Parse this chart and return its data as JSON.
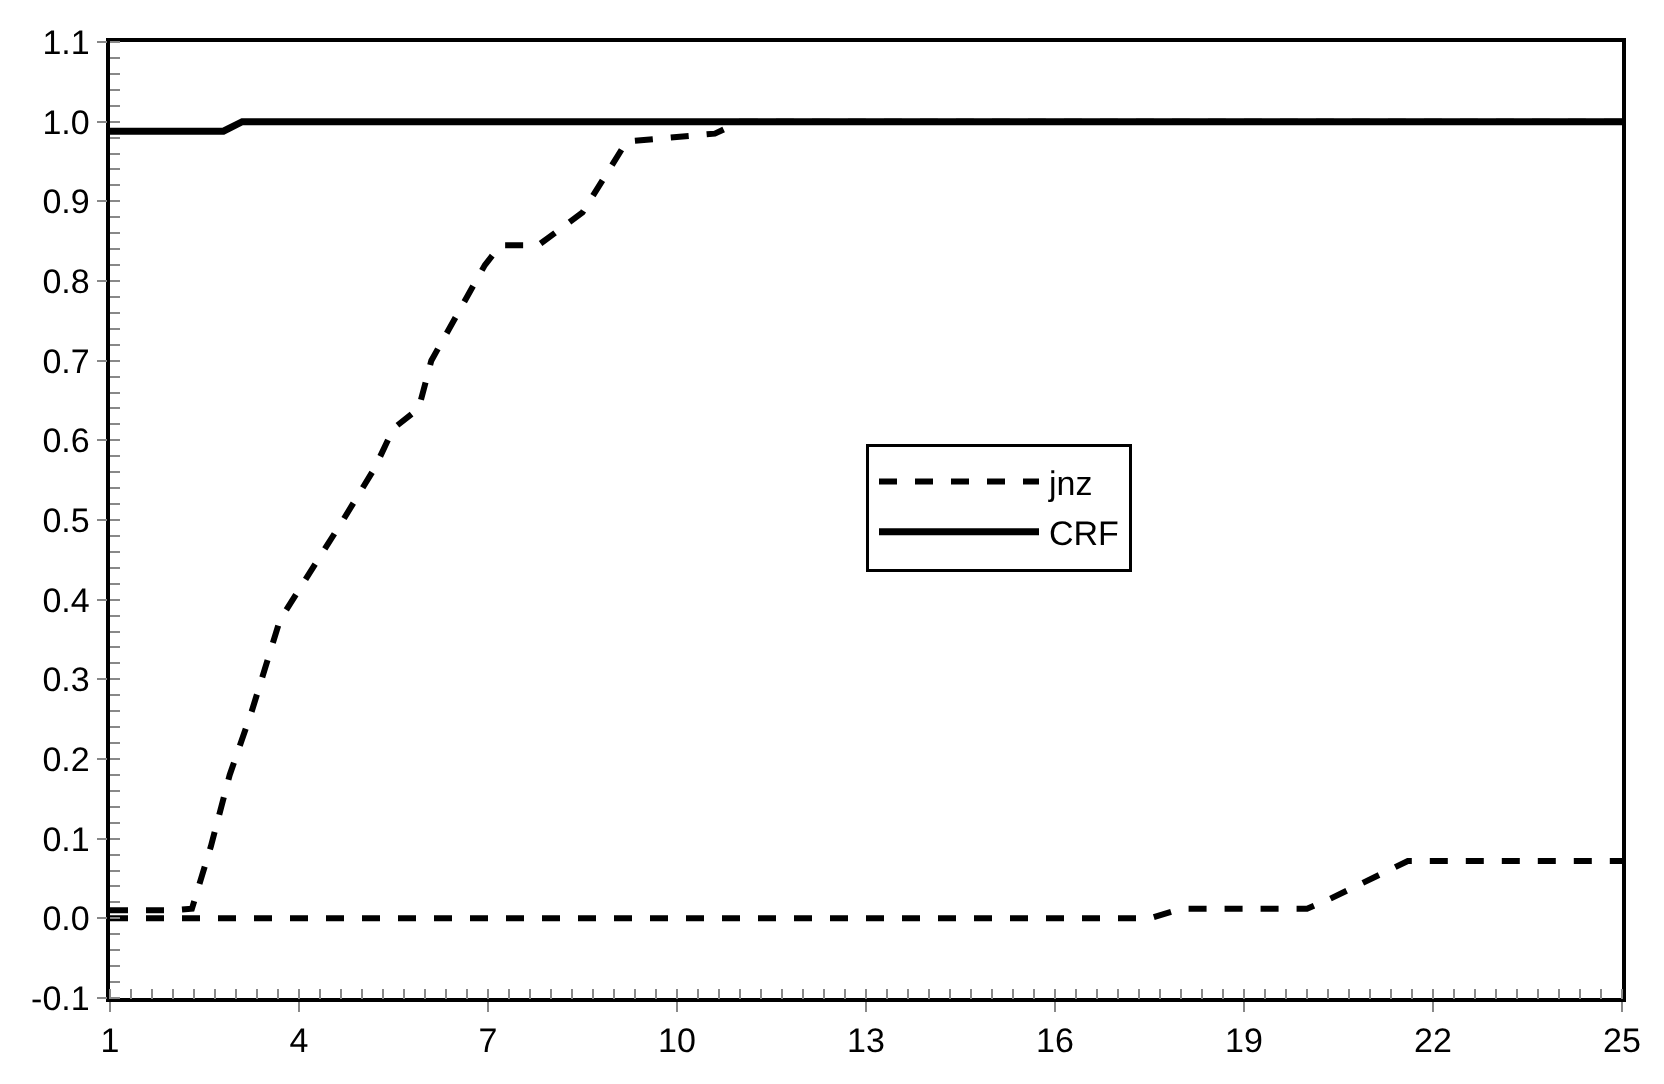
{
  "chart_data": {
    "type": "line",
    "xlim": [
      1,
      25
    ],
    "xticks": [
      1,
      4,
      7,
      10,
      13,
      16,
      19,
      22,
      25
    ],
    "ylim": [
      -0.1,
      1.1
    ],
    "yticks": [
      -0.1,
      {
        "value": 0,
        "label": "0.0"
      },
      0.1,
      0.2,
      0.3,
      0.4,
      0.5,
      0.6,
      0.7,
      0.8,
      0.9,
      {
        "value": 1,
        "label": "1.0"
      },
      1.1
    ],
    "grid": false,
    "legend": "right",
    "marker": "none",
    "series": [
      {
        "name": "jnz",
        "color": "#000000",
        "line_style": "dashed",
        "x": [
          1,
          2,
          2.3,
          2.6,
          2.9,
          3.25,
          3.7,
          4.3,
          4.7,
          5.2,
          5.5,
          5.9,
          6.1,
          6.95,
          7.2,
          7.8,
          8.5,
          9.2,
          10.6,
          11,
          25
        ],
        "values": [
          0.01,
          0.01,
          0.012,
          0.09,
          0.18,
          0.26,
          0.375,
          0.45,
          0.5,
          0.565,
          0.615,
          0.64,
          0.7,
          0.82,
          0.845,
          0.845,
          0.886,
          0.975,
          0.985,
          1.0,
          1.0
        ]
      },
      {
        "name": "CRF",
        "color": "#000000",
        "line_style": "solid",
        "x": [
          1,
          2.8,
          3.1,
          25
        ],
        "values": [
          0.988,
          0.988,
          1.0,
          1.0
        ]
      },
      {
        "color": "#000000",
        "line_style": "dashed",
        "x": [
          1,
          17.5,
          18,
          20,
          20.3,
          21.6,
          25
        ],
        "values": [
          0,
          0,
          0.012,
          0.012,
          0.022,
          0.072,
          0.072
        ]
      }
    ]
  }
}
